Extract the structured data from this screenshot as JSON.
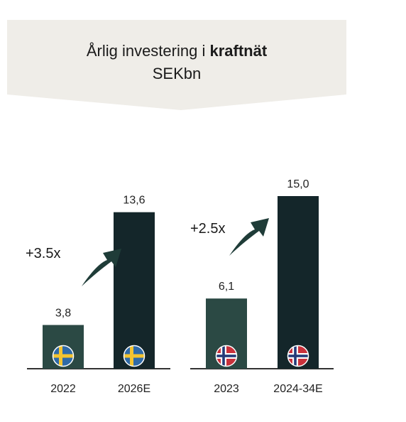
{
  "header": {
    "title_prefix": "Årlig investering i ",
    "title_bold": "kraftnät",
    "unit": "SEKbn"
  },
  "colors": {
    "banner": "#efede8",
    "bar_base": "#2b4944",
    "bar_forecast": "#14262a",
    "axis": "#333333",
    "arrow": "#1f3c38",
    "sweden_blue": "#2f6aa8",
    "sweden_yellow": "#f4c430",
    "norway_red": "#c9313b",
    "norway_blue": "#243a78"
  },
  "chart_data": [
    {
      "type": "bar",
      "country": "Sweden",
      "flag_icon": "sweden-flag-icon",
      "categories": [
        "2022",
        "2026E"
      ],
      "values": [
        3.8,
        13.6
      ],
      "value_labels": [
        "3,8",
        "13,6"
      ],
      "multiplier": "+3.5x",
      "ylim": [
        0,
        16
      ]
    },
    {
      "type": "bar",
      "country": "Norway",
      "flag_icon": "norway-flag-icon",
      "categories": [
        "2023",
        "2024-34E"
      ],
      "values": [
        6.1,
        15.0
      ],
      "value_labels": [
        "6,1",
        "15,0"
      ],
      "multiplier": "+2.5x",
      "ylim": [
        0,
        16
      ]
    }
  ]
}
